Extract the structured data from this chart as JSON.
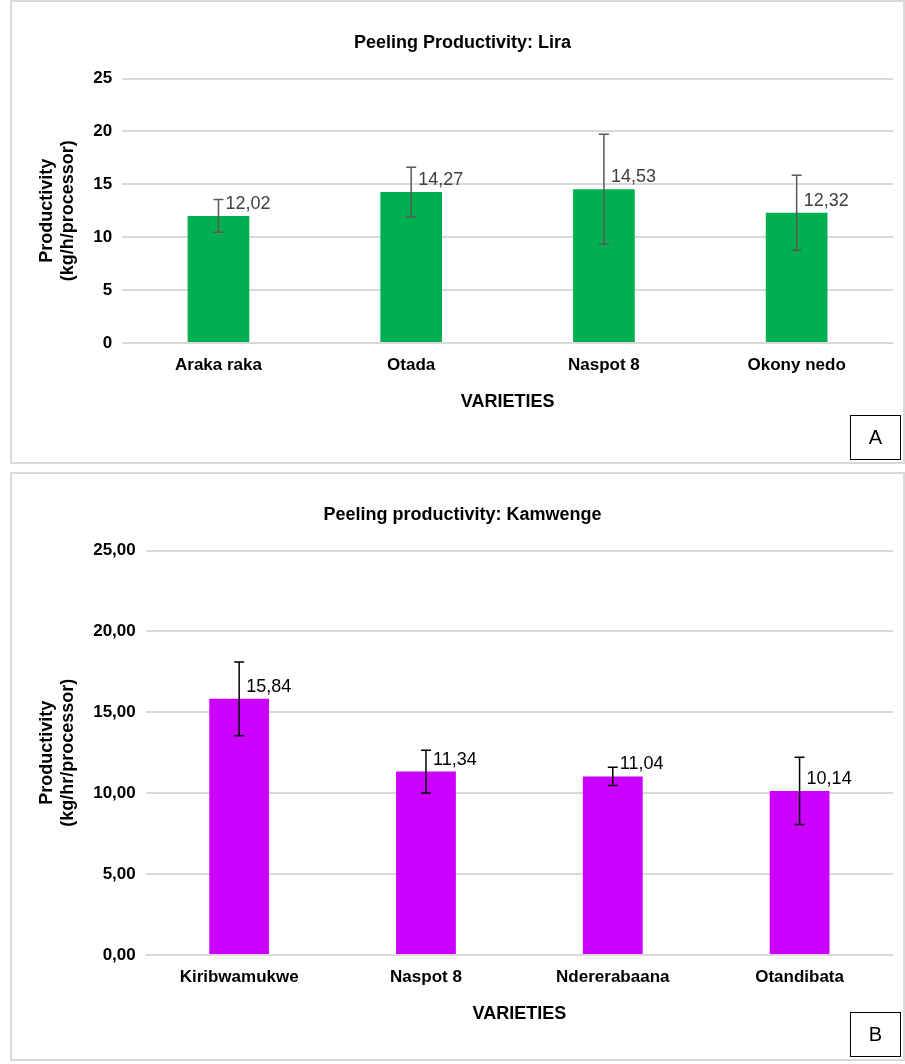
{
  "chart_data": [
    {
      "type": "bar",
      "title": "Peeling Productivity: Lira",
      "xlabel": "VARIETIES",
      "ylabel": "Productivity\n(kg/h/processor)",
      "categories": [
        "Araka raka",
        "Otada",
        "Naspot 8",
        "Okony nedo"
      ],
      "values": [
        12.02,
        14.27,
        14.53,
        12.32
      ],
      "color": "#00b050",
      "errors": [
        1.55,
        2.35,
        5.2,
        3.55
      ],
      "value_labels": [
        "12,02",
        "14,27",
        "14,53",
        "12,32"
      ],
      "ylim": [
        0,
        25
      ],
      "yticks": [
        0,
        5,
        10,
        15,
        20,
        25
      ],
      "grid": "y",
      "legend": false,
      "annotations": [
        "A"
      ]
    },
    {
      "type": "bar",
      "title": "Peeling productivity: Kamwenge",
      "xlabel": "VARIETIES",
      "ylabel": "Productivity\n(kg/hr/processor)",
      "categories": [
        "Kiribwamukwe",
        "Naspot 8",
        "Ndererabaana",
        "Otandibata"
      ],
      "values": [
        15.84,
        11.34,
        11.04,
        10.14
      ],
      "color": "#cc00ff",
      "errors": [
        2.28,
        1.32,
        0.56,
        2.08
      ],
      "value_labels": [
        "15,84",
        "11,34",
        "11,04",
        "10,14"
      ],
      "ylim": [
        0,
        25
      ],
      "yticks": [
        {
          "value": 0,
          "label": "0,00"
        },
        {
          "value": 5,
          "label": "5,00"
        },
        {
          "value": 10,
          "label": "10,00"
        },
        {
          "value": 15,
          "label": "15,00"
        },
        {
          "value": 20,
          "label": "20,00"
        },
        {
          "value": 25,
          "label": "25,00"
        }
      ],
      "grid": "y",
      "legend": false,
      "annotations": [
        "B"
      ]
    }
  ]
}
